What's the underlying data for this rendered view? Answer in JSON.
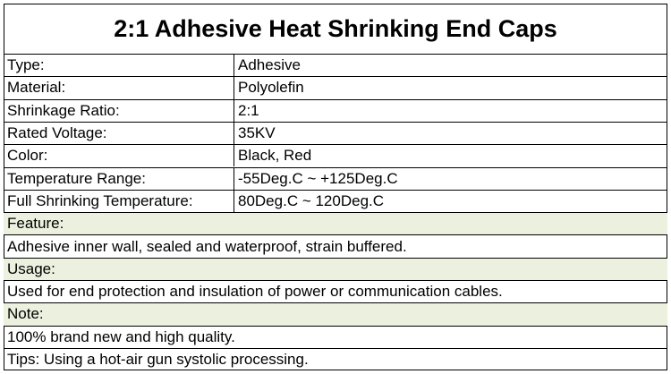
{
  "title": "2:1 Adhesive Heat Shrinking End Caps",
  "specs": [
    {
      "label": "Type:",
      "value": "Adhesive"
    },
    {
      "label": "Material:",
      "value": "Polyolefin"
    },
    {
      "label": "Shrinkage Ratio:",
      "value": "2:1"
    },
    {
      "label": "Rated Voltage:",
      "value": "35KV"
    },
    {
      "label": "Color:",
      "value": "Black, Red"
    },
    {
      "label": "Temperature Range:",
      "value": "-55Deg.C ~ +125Deg.C"
    },
    {
      "label": "Full Shrinking Temperature:",
      "value": "80Deg.C ~ 120Deg.C"
    }
  ],
  "sections": [
    {
      "heading": "Feature:",
      "text": "Adhesive inner wall, sealed and waterproof, strain buffered."
    },
    {
      "heading": "Usage:",
      "text": "Used for end protection and insulation of power or communication cables."
    },
    {
      "heading": "Note:",
      "text": "100% brand new and high quality."
    }
  ],
  "footer": "Tips: Using a hot-air gun systolic processing."
}
